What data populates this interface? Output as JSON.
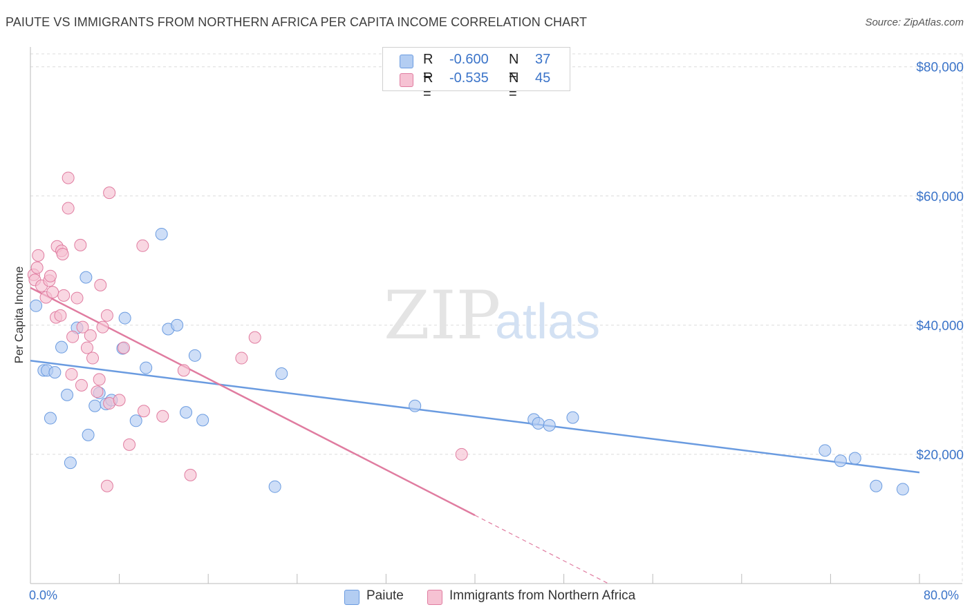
{
  "chart_data": {
    "type": "scatter",
    "title": "PAIUTE VS IMMIGRANTS FROM NORTHERN AFRICA PER CAPITA INCOME CORRELATION CHART",
    "source": "Source: ZipAtlas.com",
    "xlabel": "",
    "ylabel": "Per Capita Income",
    "xlim": [
      0,
      80
    ],
    "ylim": [
      0,
      82000
    ],
    "x_tick_labels": {
      "left": "0.0%",
      "right": "80.0%"
    },
    "y_ticks": [
      {
        "value": 20000,
        "label": "$20,000"
      },
      {
        "value": 40000,
        "label": "$40,000"
      },
      {
        "value": 60000,
        "label": "$60,000"
      },
      {
        "value": 80000,
        "label": "$80,000"
      }
    ],
    "watermark": {
      "part1": "ZIP",
      "part2": "atlas"
    },
    "legend_stats": [
      {
        "series": "Paiute",
        "r_label": "R =",
        "r_value": "-0.600",
        "n_label": "N =",
        "n_value": "37"
      },
      {
        "series": "Immigrants from Northern Africa",
        "r_label": "R =",
        "r_value": "-0.535",
        "n_label": "N =",
        "n_value": "45"
      }
    ],
    "series": [
      {
        "name": "Paiute",
        "color": "#6a9be0",
        "fill": "#b3cdf2",
        "trend": {
          "x0": 0,
          "y0": 34500,
          "x1": 80,
          "y1": 17200,
          "dashed_from": null
        },
        "points": [
          [
            0.5,
            43000
          ],
          [
            1.2,
            33000
          ],
          [
            1.5,
            33000
          ],
          [
            1.8,
            25600
          ],
          [
            2.2,
            32700
          ],
          [
            2.8,
            36600
          ],
          [
            3.3,
            29200
          ],
          [
            3.6,
            18700
          ],
          [
            4.2,
            39600
          ],
          [
            5.0,
            47400
          ],
          [
            5.2,
            23000
          ],
          [
            5.8,
            27500
          ],
          [
            6.2,
            29500
          ],
          [
            6.8,
            27800
          ],
          [
            7.3,
            28400
          ],
          [
            8.3,
            36400
          ],
          [
            8.5,
            41100
          ],
          [
            9.5,
            25200
          ],
          [
            10.4,
            33400
          ],
          [
            11.8,
            54100
          ],
          [
            12.4,
            39400
          ],
          [
            13.2,
            40000
          ],
          [
            14.0,
            26500
          ],
          [
            14.8,
            35300
          ],
          [
            15.5,
            25300
          ],
          [
            22.0,
            15000
          ],
          [
            22.6,
            32500
          ],
          [
            34.6,
            27500
          ],
          [
            45.3,
            25400
          ],
          [
            45.7,
            24800
          ],
          [
            46.7,
            24500
          ],
          [
            48.8,
            25700
          ],
          [
            71.5,
            20600
          ],
          [
            72.9,
            19000
          ],
          [
            74.2,
            19400
          ],
          [
            76.1,
            15100
          ],
          [
            78.5,
            14600
          ]
        ]
      },
      {
        "name": "Immigrants from Northern Africa",
        "color": "#e07ca0",
        "fill": "#f6c2d3",
        "trend": {
          "x0": 0,
          "y0": 45800,
          "x1": 52,
          "y1": 0,
          "dashed_from": 40
        },
        "points": [
          [
            0.3,
            47800
          ],
          [
            0.4,
            47000
          ],
          [
            0.6,
            48900
          ],
          [
            0.7,
            50800
          ],
          [
            1.0,
            46100
          ],
          [
            1.4,
            44300
          ],
          [
            1.7,
            46900
          ],
          [
            1.8,
            47600
          ],
          [
            2.0,
            45100
          ],
          [
            2.3,
            41200
          ],
          [
            2.4,
            52200
          ],
          [
            2.7,
            41500
          ],
          [
            2.8,
            51500
          ],
          [
            2.9,
            51000
          ],
          [
            3.0,
            44600
          ],
          [
            3.4,
            62800
          ],
          [
            3.4,
            58100
          ],
          [
            3.7,
            32400
          ],
          [
            3.8,
            38200
          ],
          [
            4.2,
            44200
          ],
          [
            4.5,
            52400
          ],
          [
            4.6,
            30700
          ],
          [
            4.7,
            39700
          ],
          [
            5.1,
            36500
          ],
          [
            5.4,
            38400
          ],
          [
            5.6,
            34900
          ],
          [
            6.0,
            29700
          ],
          [
            6.2,
            31600
          ],
          [
            6.3,
            46200
          ],
          [
            6.5,
            39700
          ],
          [
            6.9,
            41500
          ],
          [
            6.9,
            15100
          ],
          [
            7.1,
            27900
          ],
          [
            7.1,
            60500
          ],
          [
            8.0,
            28400
          ],
          [
            8.4,
            36500
          ],
          [
            8.9,
            21500
          ],
          [
            10.1,
            52300
          ],
          [
            10.2,
            26700
          ],
          [
            11.9,
            25900
          ],
          [
            13.8,
            33000
          ],
          [
            14.4,
            16800
          ],
          [
            19.0,
            34900
          ],
          [
            20.2,
            38100
          ],
          [
            38.8,
            20000
          ]
        ]
      }
    ]
  }
}
